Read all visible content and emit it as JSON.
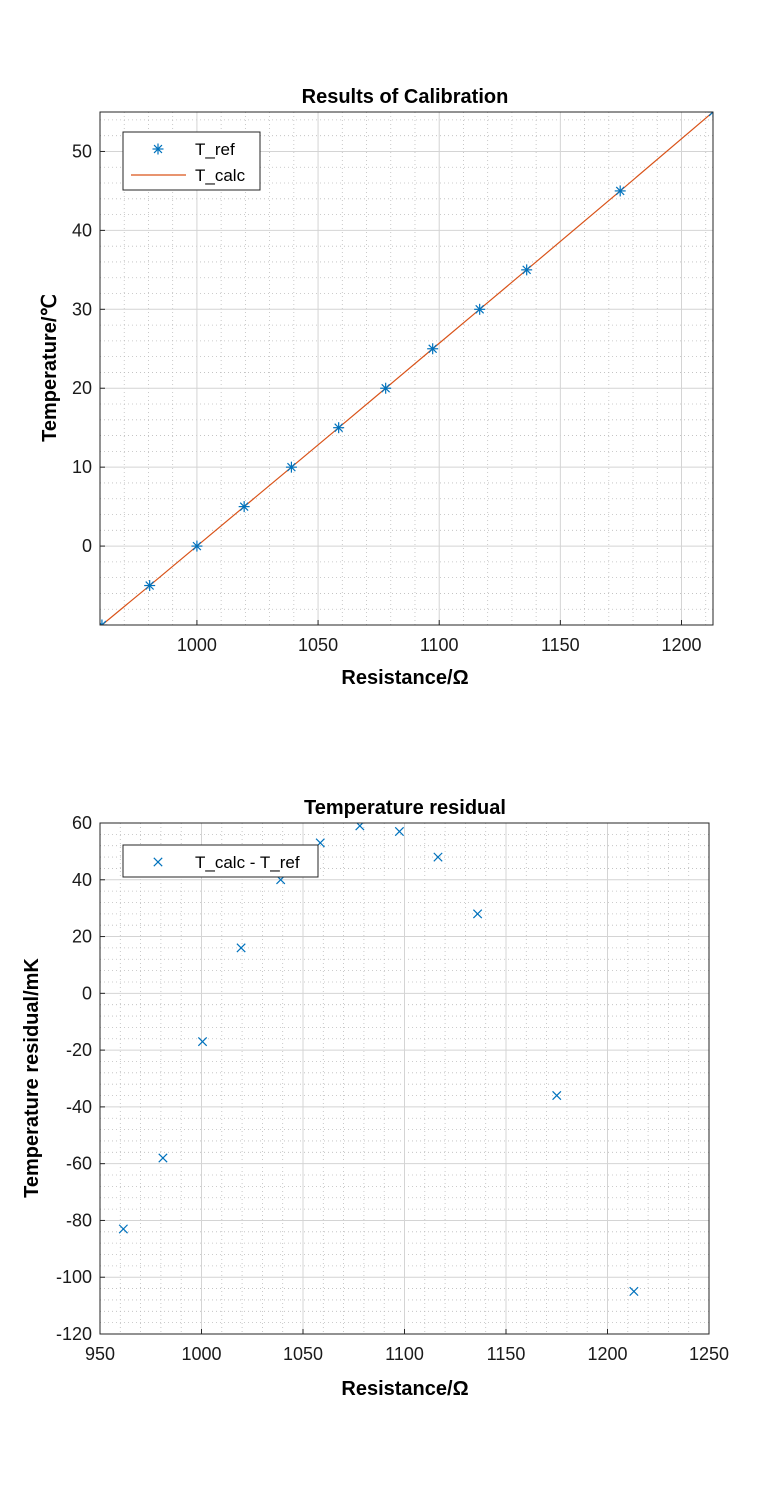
{
  "colors": {
    "marker": "#0072BD",
    "line": "#D95319",
    "axis": "#262626"
  },
  "chart_data": [
    {
      "type": "line",
      "title": "Results of Calibration",
      "xlabel": "Resistance/Ω",
      "ylabel": "Temperature/℃",
      "xlim": [
        960,
        1213
      ],
      "ylim": [
        -10,
        55
      ],
      "xticks": [
        1000,
        1050,
        1100,
        1150,
        1200
      ],
      "yticks": [
        0,
        10,
        20,
        30,
        40,
        50
      ],
      "xtick_labels": [
        "1000",
        "1050",
        "1100",
        "1150",
        "1200"
      ],
      "ytick_labels": [
        "0",
        "10",
        "20",
        "30",
        "40",
        "50"
      ],
      "grid": true,
      "minor_grid": true,
      "legend_position": "top-left",
      "series": [
        {
          "name": "T_ref",
          "style": "markers",
          "marker": "asterisk",
          "x": [
            960.8,
            980.5,
            1000.0,
            1019.5,
            1039.0,
            1058.5,
            1077.9,
            1097.3,
            1116.7,
            1136.1,
            1174.7,
            1213.0
          ],
          "y": [
            -10,
            -5,
            0,
            5,
            10,
            15,
            20,
            25,
            30,
            35,
            45,
            55
          ]
        },
        {
          "name": "T_calc",
          "style": "line",
          "x": [
            960.8,
            980.5,
            1000.0,
            1019.5,
            1039.0,
            1058.5,
            1077.9,
            1097.3,
            1116.7,
            1136.1,
            1174.7,
            1213.0
          ],
          "y": [
            -10,
            -5,
            0,
            5,
            10,
            15,
            20,
            25,
            30,
            35,
            45,
            55
          ]
        }
      ]
    },
    {
      "type": "scatter",
      "title": "Temperature residual",
      "xlabel": "Resistance/Ω",
      "ylabel": "Temperature residual/mK",
      "xlim": [
        950,
        1250
      ],
      "ylim": [
        -120,
        60
      ],
      "xticks": [
        950,
        1000,
        1050,
        1100,
        1150,
        1200,
        1250
      ],
      "yticks": [
        -120,
        -100,
        -80,
        -60,
        -40,
        -20,
        0,
        20,
        40,
        60
      ],
      "xtick_labels": [
        "950",
        "1000",
        "1050",
        "1100",
        "1150",
        "1200",
        "1250"
      ],
      "ytick_labels": [
        "-120",
        "-100",
        "-80",
        "-60",
        "-40",
        "-20",
        "0",
        "20",
        "40",
        "60"
      ],
      "grid": true,
      "minor_grid": true,
      "legend_position": "top-left",
      "series": [
        {
          "name": "T_calc - T_ref",
          "style": "markers",
          "marker": "cross",
          "x": [
            961.5,
            981.0,
            1000.5,
            1019.5,
            1039.0,
            1058.5,
            1078.0,
            1097.5,
            1116.5,
            1136.0,
            1175.0,
            1213.0
          ],
          "y": [
            -83,
            -58,
            -17,
            16,
            40,
            53,
            59,
            57,
            48,
            28,
            -36,
            -105
          ]
        }
      ]
    }
  ]
}
